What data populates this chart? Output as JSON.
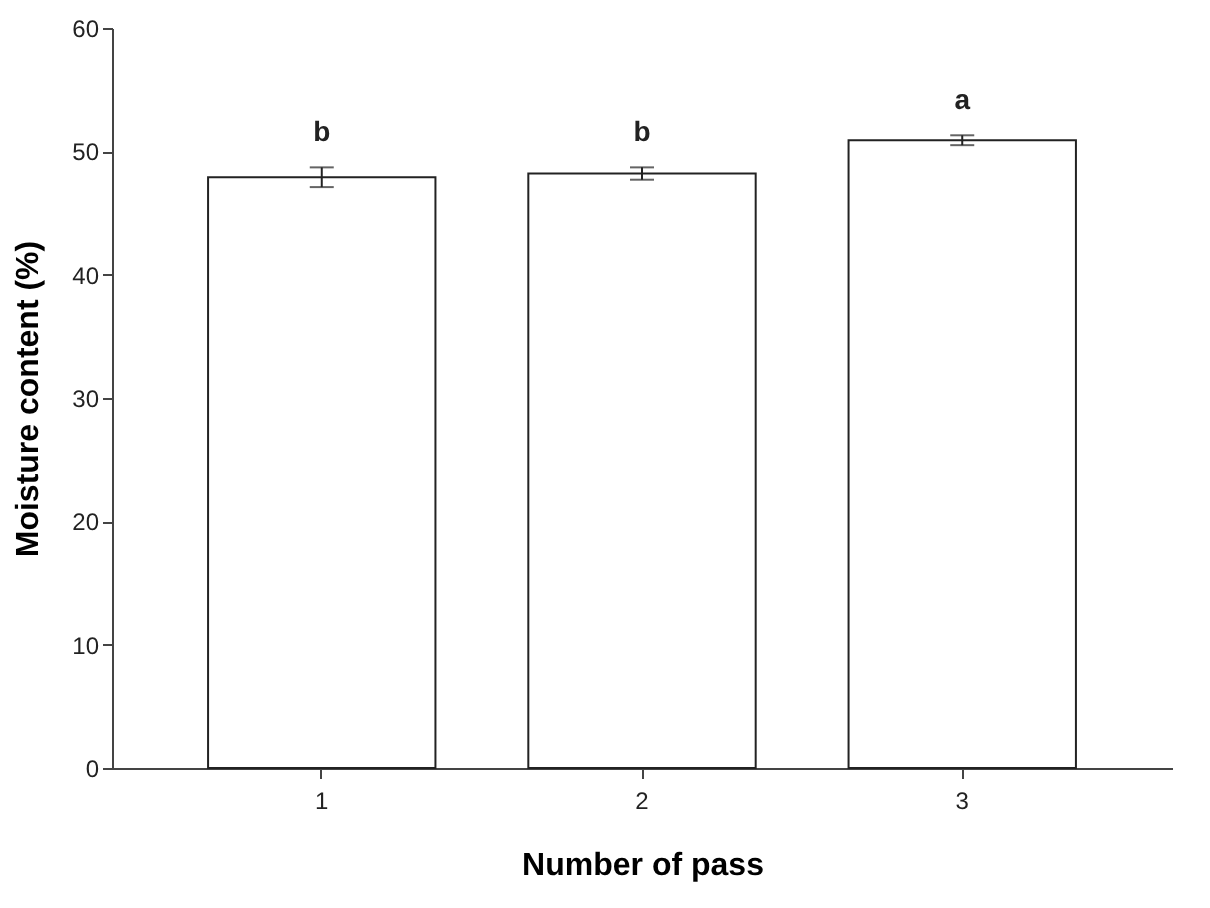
{
  "chart_data": {
    "type": "bar",
    "xlabel": "Number of pass",
    "ylabel": "Moisture content (%)",
    "categories": [
      "1",
      "2",
      "3"
    ],
    "values": [
      47.9,
      48.2,
      50.9
    ],
    "errors": [
      0.8,
      0.5,
      0.4
    ],
    "color": "#ffffff",
    "ylim": [
      0,
      60
    ],
    "yticks": [
      0,
      10,
      20,
      30,
      40,
      50,
      60
    ],
    "grid": false,
    "annotations": [
      {
        "text": "b",
        "x": "1",
        "y": 48.7
      },
      {
        "text": "b",
        "x": "2",
        "y": 48.7
      },
      {
        "text": "a",
        "x": "3",
        "y": 51.3
      }
    ]
  }
}
